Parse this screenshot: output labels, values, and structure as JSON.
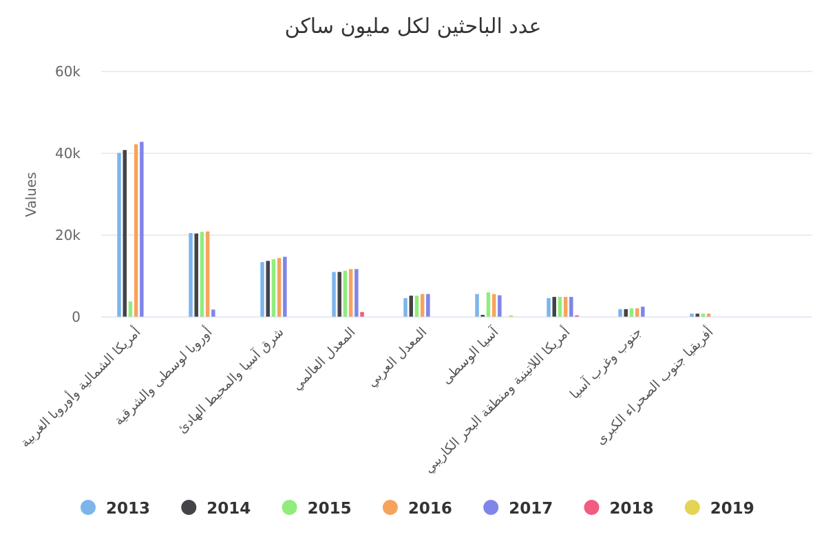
{
  "chart_data": {
    "type": "bar",
    "title": "عدد الباحثين لكل مليون ساكن",
    "ylabel": "Values",
    "xlabel": "",
    "ylim": [
      0,
      60000
    ],
    "yticks": [
      0,
      20000,
      40000,
      60000
    ],
    "ytick_labels": [
      "0",
      "20k",
      "40k",
      "60k"
    ],
    "grid": true,
    "legend_position": "bottom",
    "categories": [
      "أمريكا الشمالية وأوروبا الغربية",
      "أوروبا لوسطى والشرقية",
      "شرق آسيا والمحيط الهادئ",
      "المعدل العالمي",
      "المعدل العربي",
      "آسيا الوسطى",
      "أمريكا اللاتينية ومنطقة البحر الكاريبي",
      "جنوب وغرب آسيا",
      "أفريقيا جنوب الصحراء الكبرى"
    ],
    "series": [
      {
        "name": "2013",
        "color": "#7cb5ec",
        "values": [
          40100,
          20500,
          13400,
          11000,
          4600,
          5600,
          4600,
          1900,
          800
        ]
      },
      {
        "name": "2014",
        "color": "#434348",
        "values": [
          40800,
          20400,
          13700,
          11000,
          5200,
          500,
          4900,
          1900,
          800
        ]
      },
      {
        "name": "2015",
        "color": "#90ed7d",
        "values": [
          3800,
          20800,
          14100,
          11300,
          5200,
          6000,
          4900,
          2100,
          800
        ]
      },
      {
        "name": "2016",
        "color": "#f7a35c",
        "values": [
          42200,
          20900,
          14400,
          11700,
          5600,
          5600,
          4900,
          2100,
          800
        ]
      },
      {
        "name": "2017",
        "color": "#8085e9",
        "values": [
          42800,
          1800,
          14700,
          11700,
          5600,
          5300,
          4900,
          2500,
          0
        ]
      },
      {
        "name": "2018",
        "color": "#f15c80",
        "values": [
          0,
          0,
          0,
          1200,
          0,
          0,
          400,
          0,
          0
        ]
      },
      {
        "name": "2019",
        "color": "#e4d354",
        "values": [
          0,
          0,
          0,
          0,
          0,
          400,
          0,
          0,
          0
        ]
      }
    ]
  }
}
